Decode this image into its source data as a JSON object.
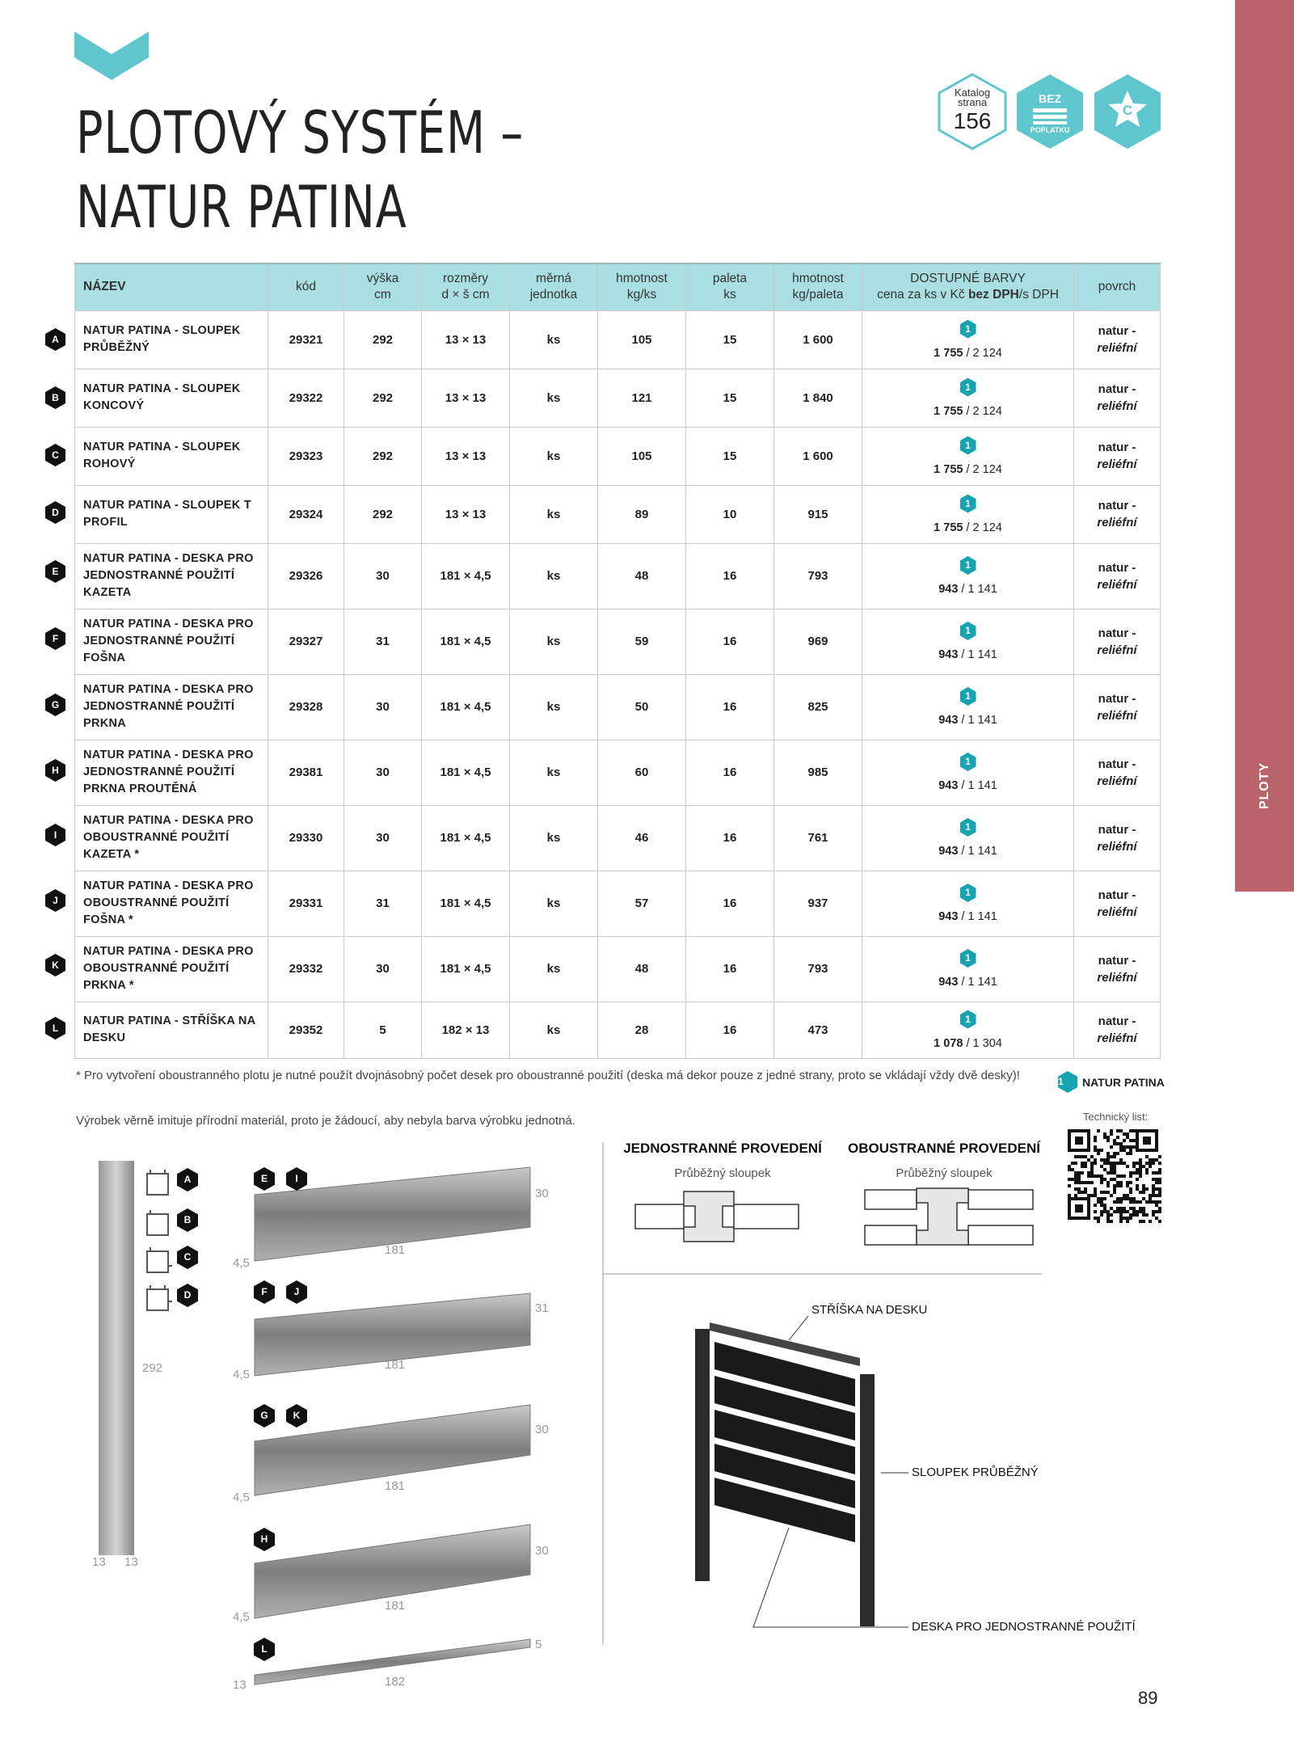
{
  "header": {
    "title_line1": "PLOTOVÝ SYSTÉM –",
    "title_line2": "NATUR PATINA",
    "catalog_badge": {
      "label1": "Katalog",
      "label2": "strana",
      "page": "156"
    },
    "fee_badge": {
      "top": "BEZ",
      "bottom": "POPLATKU"
    },
    "class_badge": "C"
  },
  "side_tab": "PLOTY",
  "accent": "#5ec6cc",
  "tab_color": "#b9646a",
  "table": {
    "headers": [
      "NÁZEV",
      "kód",
      "výška\ncm",
      "rozměry\nd × š cm",
      "měrná\njednotka",
      "hmotnost\nkg/ks",
      "paleta\nks",
      "hmotnost\nkg/paleta"
    ],
    "h_colors_1": "DOSTUPNÉ BARVY",
    "h_colors_2a": "cena za ks v Kč ",
    "h_colors_2b": "bez DPH",
    "h_colors_2c": "/s DPH",
    "h_surface": "povrch",
    "rows": [
      {
        "letter": "A",
        "name": "NATUR PATINA - SLOUPEK PRŮBĚŽNÝ",
        "code": "29321",
        "height": "292",
        "dims": "13 × 13",
        "unit": "ks",
        "kg": "105",
        "pal": "15",
        "kgpal": "1 600",
        "color": "1",
        "p1": "1 755",
        "p2": " / 2 124",
        "s1": "natur -",
        "s2": "reliéfní"
      },
      {
        "letter": "B",
        "name": "NATUR PATINA - SLOUPEK KONCOVÝ",
        "code": "29322",
        "height": "292",
        "dims": "13 × 13",
        "unit": "ks",
        "kg": "121",
        "pal": "15",
        "kgpal": "1 840",
        "color": "1",
        "p1": "1 755",
        "p2": " / 2 124",
        "s1": "natur -",
        "s2": "reliéfní"
      },
      {
        "letter": "C",
        "name": "NATUR PATINA - SLOUPEK ROHOVÝ",
        "code": "29323",
        "height": "292",
        "dims": "13 × 13",
        "unit": "ks",
        "kg": "105",
        "pal": "15",
        "kgpal": "1 600",
        "color": "1",
        "p1": "1 755",
        "p2": " / 2 124",
        "s1": "natur -",
        "s2": "reliéfní"
      },
      {
        "letter": "D",
        "name": "NATUR PATINA - SLOUPEK T PROFIL",
        "code": "29324",
        "height": "292",
        "dims": "13 × 13",
        "unit": "ks",
        "kg": "89",
        "pal": "10",
        "kgpal": "915",
        "color": "1",
        "p1": "1 755",
        "p2": " / 2 124",
        "s1": "natur -",
        "s2": "reliéfní"
      },
      {
        "letter": "E",
        "name": "NATUR PATINA - DESKA PRO JEDNOSTRANNÉ POUŽITÍ KAZETA",
        "code": "29326",
        "height": "30",
        "dims": "181 × 4,5",
        "unit": "ks",
        "kg": "48",
        "pal": "16",
        "kgpal": "793",
        "color": "1",
        "p1": "943",
        "p2": " / 1 141",
        "s1": "natur -",
        "s2": "reliéfní"
      },
      {
        "letter": "F",
        "name": "NATUR PATINA - DESKA PRO JEDNOSTRANNÉ POUŽITÍ FOŠNA",
        "code": "29327",
        "height": "31",
        "dims": "181 × 4,5",
        "unit": "ks",
        "kg": "59",
        "pal": "16",
        "kgpal": "969",
        "color": "1",
        "p1": "943",
        "p2": " / 1 141",
        "s1": "natur -",
        "s2": "reliéfní"
      },
      {
        "letter": "G",
        "name": "NATUR PATINA - DESKA PRO JEDNOSTRANNÉ POUŽITÍ PRKNA",
        "code": "29328",
        "height": "30",
        "dims": "181 × 4,5",
        "unit": "ks",
        "kg": "50",
        "pal": "16",
        "kgpal": "825",
        "color": "1",
        "p1": "943",
        "p2": " / 1 141",
        "s1": "natur -",
        "s2": "reliéfní"
      },
      {
        "letter": "H",
        "name": "NATUR PATINA - DESKA PRO JEDNOSTRANNÉ POUŽITÍ PRKNA PROUTĚNÁ",
        "code": "29381",
        "height": "30",
        "dims": "181 × 4,5",
        "unit": "ks",
        "kg": "60",
        "pal": "16",
        "kgpal": "985",
        "color": "1",
        "p1": "943",
        "p2": " / 1 141",
        "s1": "natur -",
        "s2": "reliéfní"
      },
      {
        "letter": "I",
        "name": "NATUR PATINA - DESKA PRO OBOUSTRANNÉ POUŽITÍ KAZETA *",
        "code": "29330",
        "height": "30",
        "dims": "181 × 4,5",
        "unit": "ks",
        "kg": "46",
        "pal": "16",
        "kgpal": "761",
        "color": "1",
        "p1": "943",
        "p2": " / 1 141",
        "s1": "natur -",
        "s2": "reliéfní"
      },
      {
        "letter": "J",
        "name": "NATUR PATINA - DESKA PRO OBOUSTRANNÉ POUŽITÍ FOŠNA *",
        "code": "29331",
        "height": "31",
        "dims": "181 × 4,5",
        "unit": "ks",
        "kg": "57",
        "pal": "16",
        "kgpal": "937",
        "color": "1",
        "p1": "943",
        "p2": " / 1 141",
        "s1": "natur -",
        "s2": "reliéfní"
      },
      {
        "letter": "K",
        "name": "NATUR PATINA - DESKA PRO OBOUSTRANNÉ POUŽITÍ PRKNA *",
        "code": "29332",
        "height": "30",
        "dims": "181 × 4,5",
        "unit": "ks",
        "kg": "48",
        "pal": "16",
        "kgpal": "793",
        "color": "1",
        "p1": "943",
        "p2": " / 1 141",
        "s1": "natur -",
        "s2": "reliéfní"
      },
      {
        "letter": "L",
        "name": "NATUR PATINA - STŘÍŠKA NA DESKU",
        "code": "29352",
        "height": "5",
        "dims": "182 × 13",
        "unit": "ks",
        "kg": "28",
        "pal": "16",
        "kgpal": "473",
        "color": "1",
        "p1": "1 078",
        "p2": " / 1 304",
        "s1": "natur -",
        "s2": "reliéfní"
      }
    ]
  },
  "notes": {
    "footnote": "* Pro vytvoření oboustranného plotu je nutné použít dvojnásobný počet desek pro oboustranné použití (deska má dekor pouze z jedné strany, proto se vkládají vždy dvě desky)!",
    "remark": "Výrobek věrně imituje přírodní materiál, proto je žádoucí, aby nebyla barva výrobku jednotná."
  },
  "legend": {
    "num": "1",
    "label": "NATUR PATINA"
  },
  "tech_sheet": "Technický list:",
  "drawings": {
    "post": {
      "h": "292",
      "w1": "13",
      "w2": "13",
      "sections": [
        "A",
        "B",
        "C",
        "D"
      ]
    },
    "boards": [
      {
        "badges": [
          "E",
          "I"
        ],
        "h": "30",
        "len": "181",
        "t": "4,5"
      },
      {
        "badges": [
          "F",
          "J"
        ],
        "h": "31",
        "len": "181",
        "t": "4,5"
      },
      {
        "badges": [
          "G",
          "K"
        ],
        "h": "30",
        "len": "181",
        "t": "4,5"
      },
      {
        "badges": [
          "H"
        ],
        "h": "30",
        "len": "181",
        "t": "4,5"
      },
      {
        "badges": [
          "L"
        ],
        "h": "5",
        "len": "182",
        "t": "13"
      }
    ],
    "single": {
      "title": "JEDNOSTRANNÉ PROVEDENÍ",
      "sub": "Průběžný sloupek"
    },
    "double": {
      "title": "OBOUSTRANNÉ PROVEDENÍ",
      "sub": "Průběžný sloupek"
    },
    "fence": {
      "cap": "STŘÍŠKA NA DESKU",
      "post": "SLOUPEK PRŮBĚŽNÝ",
      "board": "DESKA PRO JEDNOSTRANNÉ POUŽITÍ"
    }
  },
  "page_number": "89"
}
